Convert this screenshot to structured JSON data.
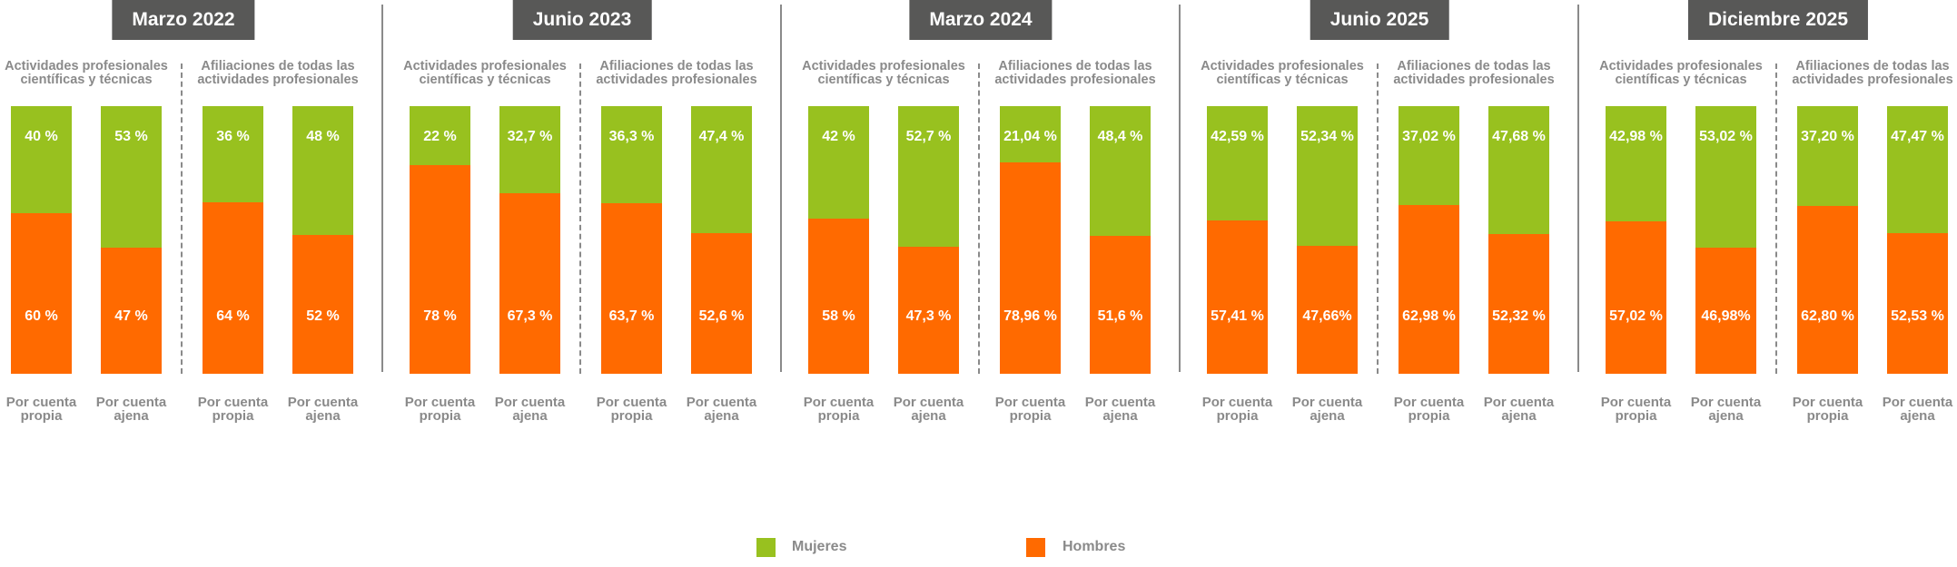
{
  "colors": {
    "mujeres": "#98c11f",
    "hombres": "#ff6a00",
    "header_bg": "#585857",
    "text": "#8a8a8a"
  },
  "legend": {
    "mujeres": "Mujeres",
    "hombres": "Hombres",
    "placement": "bottom"
  },
  "chart_data": {
    "type": "bar",
    "stacked": true,
    "normalized_percent": true,
    "series": [
      {
        "name": "Mujeres"
      },
      {
        "name": "Hombres"
      }
    ],
    "panels": [
      {
        "title": "Marzo 2022",
        "groups": [
          {
            "title_lines": [
              "Actividades profesionales",
              "científicas y técnicas"
            ],
            "bars": [
              {
                "category_lines": [
                  "Por cuenta",
                  "propia"
                ],
                "mujeres": 40,
                "hombres": 60,
                "mujeres_label": "40 %",
                "hombres_label": "60 %"
              },
              {
                "category_lines": [
                  "Por cuenta",
                  "ajena"
                ],
                "mujeres": 53,
                "hombres": 47,
                "mujeres_label": "53 %",
                "hombres_label": "47 %"
              }
            ]
          },
          {
            "title_lines": [
              "Afiliaciones de todas las",
              "actividades profesionales"
            ],
            "bars": [
              {
                "category_lines": [
                  "Por cuenta",
                  "propia"
                ],
                "mujeres": 36,
                "hombres": 64,
                "mujeres_label": "36 %",
                "hombres_label": "64 %"
              },
              {
                "category_lines": [
                  "Por cuenta",
                  "ajena"
                ],
                "mujeres": 48,
                "hombres": 52,
                "mujeres_label": "48 %",
                "hombres_label": "52 %"
              }
            ]
          }
        ]
      },
      {
        "title": "Junio 2023",
        "groups": [
          {
            "title_lines": [
              "Actividades profesionales",
              "científicas y técnicas"
            ],
            "bars": [
              {
                "category_lines": [
                  "Por cuenta",
                  "propia"
                ],
                "mujeres": 22,
                "hombres": 78,
                "mujeres_label": "22 %",
                "hombres_label": "78 %"
              },
              {
                "category_lines": [
                  "Por cuenta",
                  "ajena"
                ],
                "mujeres": 32.7,
                "hombres": 67.3,
                "mujeres_label": "32,7 %",
                "hombres_label": "67,3 %"
              }
            ]
          },
          {
            "title_lines": [
              "Afiliaciones de todas las",
              "actividades profesionales"
            ],
            "bars": [
              {
                "category_lines": [
                  "Por cuenta",
                  "propia"
                ],
                "mujeres": 36.3,
                "hombres": 63.7,
                "mujeres_label": "36,3 %",
                "hombres_label": "63,7 %"
              },
              {
                "category_lines": [
                  "Por cuenta",
                  "ajena"
                ],
                "mujeres": 47.4,
                "hombres": 52.6,
                "mujeres_label": "47,4 %",
                "hombres_label": "52,6 %"
              }
            ]
          }
        ]
      },
      {
        "title": "Marzo 2024",
        "groups": [
          {
            "title_lines": [
              "Actividades profesionales",
              "científicas y técnicas"
            ],
            "bars": [
              {
                "category_lines": [
                  "Por cuenta",
                  "propia"
                ],
                "mujeres": 42,
                "hombres": 58,
                "mujeres_label": "42 %",
                "hombres_label": "58 %"
              },
              {
                "category_lines": [
                  "Por cuenta",
                  "ajena"
                ],
                "mujeres": 52.7,
                "hombres": 47.3,
                "mujeres_label": "52,7 %",
                "hombres_label": "47,3 %"
              }
            ]
          },
          {
            "title_lines": [
              "Afiliaciones de todas las",
              "actividades profesionales"
            ],
            "bars": [
              {
                "category_lines": [
                  "Por cuenta",
                  "propia"
                ],
                "mujeres": 21.04,
                "hombres": 78.96,
                "mujeres_label": "21,04 %",
                "hombres_label": "78,96 %"
              },
              {
                "category_lines": [
                  "Por cuenta",
                  "ajena"
                ],
                "mujeres": 48.4,
                "hombres": 51.6,
                "mujeres_label": "48,4 %",
                "hombres_label": "51,6 %"
              }
            ]
          }
        ]
      },
      {
        "title": "Junio 2025",
        "groups": [
          {
            "title_lines": [
              "Actividades profesionales",
              "científicas y técnicas"
            ],
            "bars": [
              {
                "category_lines": [
                  "Por cuenta",
                  "propia"
                ],
                "mujeres": 42.59,
                "hombres": 57.41,
                "mujeres_label": "42,59 %",
                "hombres_label": "57,41 %"
              },
              {
                "category_lines": [
                  "Por cuenta",
                  "ajena"
                ],
                "mujeres": 52.34,
                "hombres": 47.66,
                "mujeres_label": "52,34 %",
                "hombres_label": "47,66%"
              }
            ]
          },
          {
            "title_lines": [
              "Afiliaciones de todas las",
              "actividades profesionales"
            ],
            "bars": [
              {
                "category_lines": [
                  "Por cuenta",
                  "propia"
                ],
                "mujeres": 37.02,
                "hombres": 62.98,
                "mujeres_label": "37,02 %",
                "hombres_label": "62,98 %"
              },
              {
                "category_lines": [
                  "Por cuenta",
                  "ajena"
                ],
                "mujeres": 47.68,
                "hombres": 52.32,
                "mujeres_label": "47,68 %",
                "hombres_label": "52,32 %"
              }
            ]
          }
        ]
      },
      {
        "title": "Diciembre 2025",
        "groups": [
          {
            "title_lines": [
              "Actividades profesionales",
              "científicas y técnicas"
            ],
            "bars": [
              {
                "category_lines": [
                  "Por cuenta",
                  "propia"
                ],
                "mujeres": 42.98,
                "hombres": 57.02,
                "mujeres_label": "42,98 %",
                "hombres_label": "57,02 %"
              },
              {
                "category_lines": [
                  "Por cuenta",
                  "ajena"
                ],
                "mujeres": 53.02,
                "hombres": 46.98,
                "mujeres_label": "53,02 %",
                "hombres_label": "46,98%"
              }
            ]
          },
          {
            "title_lines": [
              "Afiliaciones de todas las",
              "actividades profesionales"
            ],
            "bars": [
              {
                "category_lines": [
                  "Por cuenta",
                  "propia"
                ],
                "mujeres": 37.2,
                "hombres": 62.8,
                "mujeres_label": "37,20 %",
                "hombres_label": "62,80 %"
              },
              {
                "category_lines": [
                  "Por cuenta",
                  "ajena"
                ],
                "mujeres": 47.47,
                "hombres": 52.53,
                "mujeres_label": "47,47  %",
                "hombres_label": "52,53 %"
              }
            ]
          }
        ]
      }
    ]
  }
}
